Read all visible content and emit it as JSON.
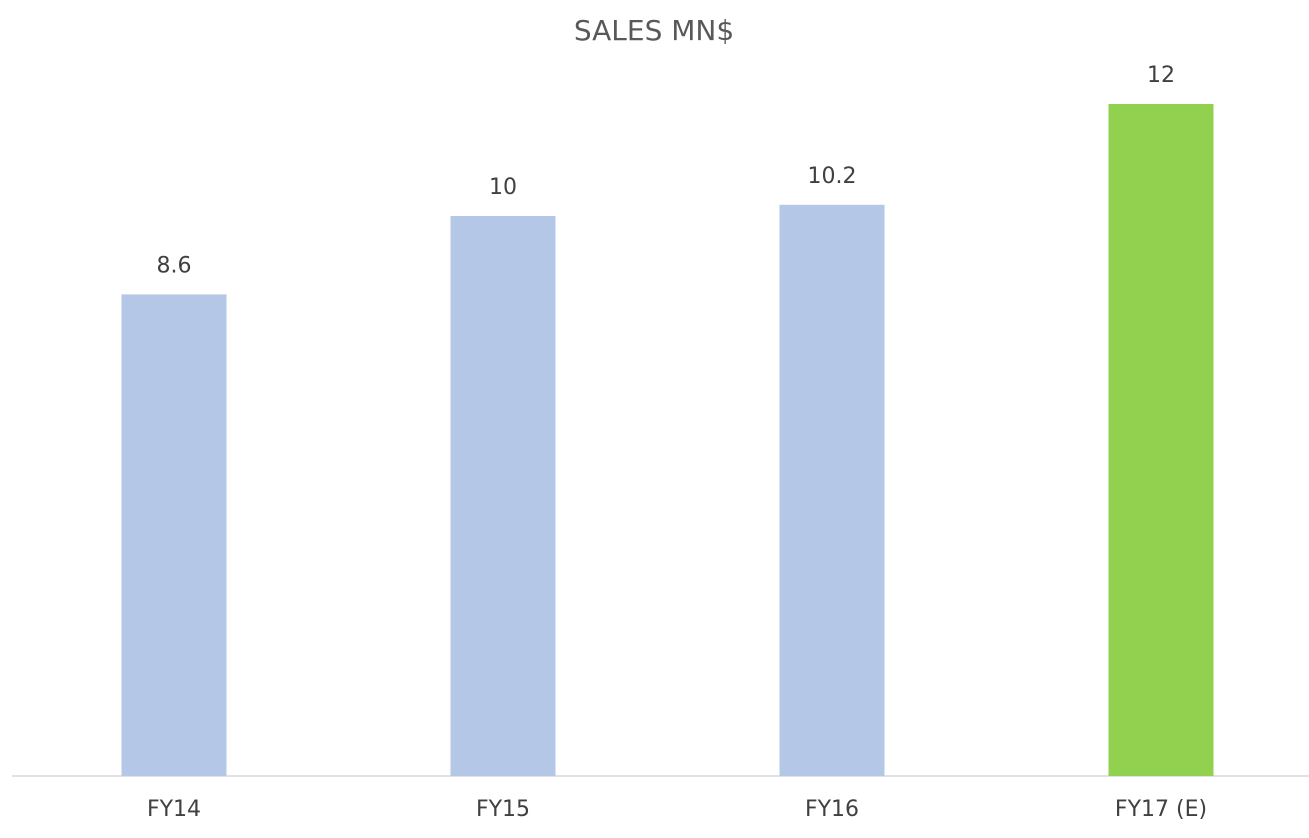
{
  "chart_data": {
    "type": "bar",
    "title": "SALES MN$",
    "categories": [
      "FY14",
      "FY15",
      "FY16",
      "FY17 (E)"
    ],
    "values": [
      8.6,
      10,
      10.2,
      12
    ],
    "colors": [
      "#b4c7e7",
      "#b4c7e7",
      "#b4c7e7",
      "#92d050"
    ],
    "ylim": [
      0,
      12
    ],
    "grid": false
  }
}
